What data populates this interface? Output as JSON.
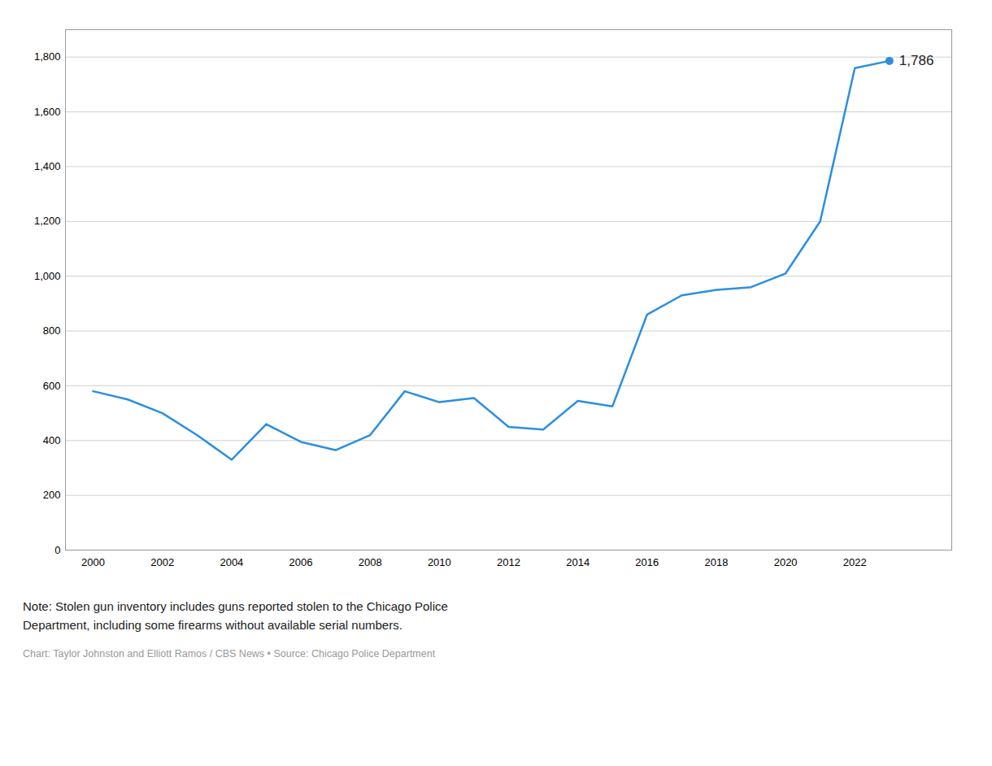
{
  "chart_data": {
    "type": "line",
    "x": [
      2000,
      2001,
      2002,
      2003,
      2004,
      2005,
      2006,
      2007,
      2008,
      2009,
      2010,
      2011,
      2012,
      2013,
      2014,
      2015,
      2016,
      2017,
      2018,
      2019,
      2020,
      2021,
      2022,
      2023
    ],
    "values": [
      580,
      550,
      500,
      420,
      330,
      460,
      395,
      365,
      420,
      580,
      540,
      555,
      450,
      440,
      545,
      525,
      860,
      930,
      950,
      960,
      1010,
      1200,
      1760,
      1786
    ],
    "color": "#2B8FE0",
    "xlim": [
      1999.2,
      2024.8
    ],
    "xticks": [
      2000,
      2002,
      2004,
      2006,
      2008,
      2010,
      2012,
      2014,
      2016,
      2018,
      2020,
      2022
    ],
    "ylim": [
      0,
      1900
    ],
    "yticks": [
      0,
      200,
      400,
      600,
      800,
      {
        "value": 1000,
        "label": "1,000"
      },
      {
        "value": 1200,
        "label": "1,200"
      },
      {
        "value": 1400,
        "label": "1,400"
      },
      {
        "value": 1600,
        "label": "1,600"
      },
      {
        "value": 1800,
        "label": "1,800"
      }
    ],
    "grid": true,
    "annotations": [
      {
        "text": "1,786",
        "x": 2023,
        "y": 1786
      }
    ],
    "note": "Note: Stolen gun inventory includes guns reported stolen to the Chicago Police\nDepartment, including some firearms without available serial numbers.",
    "credit": "Chart: Taylor Johnston and Elliott Ramos / CBS News • Source: Chicago Police Department"
  }
}
